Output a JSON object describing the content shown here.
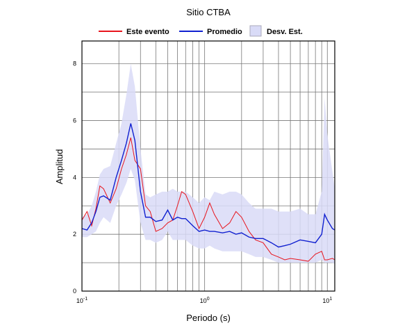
{
  "chart_data": {
    "type": "line",
    "title": "Sitio CTBA",
    "x_label": "Periodo (s)",
    "y_label": "Amplitud",
    "log_x": true,
    "grid": true,
    "xlim": [
      0.1,
      11.5
    ],
    "ylim": [
      0,
      8.8
    ],
    "xticks": [
      {
        "value": 0.1,
        "label": "10",
        "exponent": "-1"
      },
      {
        "value": 1,
        "label": "10",
        "exponent": "0"
      },
      {
        "value": 10,
        "label": "10",
        "exponent": "1"
      }
    ],
    "xminor": [
      0.2,
      0.3,
      0.4,
      0.5,
      0.6,
      0.7,
      0.8,
      0.9,
      2,
      3,
      4,
      5,
      6,
      7,
      8,
      9
    ],
    "yticks": [
      0,
      2,
      4,
      6,
      8
    ],
    "yminor": [
      1,
      3,
      5,
      7
    ],
    "x": [
      0.1,
      0.11,
      0.12,
      0.13,
      0.14,
      0.15,
      0.17,
      0.19,
      0.21,
      0.23,
      0.25,
      0.27,
      0.3,
      0.33,
      0.36,
      0.4,
      0.45,
      0.5,
      0.55,
      0.6,
      0.65,
      0.7,
      0.8,
      0.9,
      1.0,
      1.1,
      1.2,
      1.4,
      1.6,
      1.8,
      2.0,
      2.3,
      2.6,
      3,
      3.5,
      4,
      4.5,
      5,
      6,
      7,
      8,
      9,
      9.5,
      10,
      11,
      11.5
    ],
    "band": {
      "name": "Desv. Est.",
      "color": "#d9dbf7",
      "upper": [
        2.6,
        2.7,
        3.0,
        3.5,
        4.1,
        4.3,
        4.4,
        5.2,
        5.9,
        6.9,
        8.0,
        7.2,
        5.0,
        3.4,
        3.3,
        3.4,
        3.5,
        3.5,
        3.6,
        3.5,
        3.5,
        3.5,
        3.3,
        3.1,
        3.3,
        3.2,
        3.5,
        3.4,
        3.5,
        3.5,
        3.4,
        3.1,
        2.9,
        2.9,
        2.9,
        2.8,
        2.8,
        2.8,
        2.9,
        2.7,
        2.7,
        3.5,
        6.8,
        5.5,
        4.2,
        3.6
      ],
      "lower": [
        1.9,
        1.9,
        2.0,
        2.1,
        2.4,
        2.6,
        2.4,
        3.0,
        3.4,
        3.8,
        4.3,
        3.9,
        2.4,
        1.8,
        1.8,
        1.7,
        1.8,
        2.1,
        1.8,
        1.8,
        1.8,
        1.8,
        1.6,
        1.5,
        1.5,
        1.6,
        1.5,
        1.4,
        1.4,
        1.4,
        1.4,
        1.3,
        1.2,
        1.2,
        1.1,
        1.0,
        1.0,
        1.0,
        1.0,
        1.0,
        1.0,
        1.1,
        1.0,
        1.0,
        1.0,
        0.95
      ]
    },
    "series": [
      {
        "name": "Este evento",
        "color": "#e8141c",
        "values": [
          2.5,
          2.8,
          2.3,
          2.9,
          3.7,
          3.6,
          3.1,
          3.6,
          4.3,
          4.8,
          5.4,
          4.6,
          4.3,
          3.0,
          2.8,
          2.1,
          2.2,
          2.4,
          2.5,
          3.0,
          3.5,
          3.4,
          2.8,
          2.2,
          2.6,
          3.1,
          2.7,
          2.2,
          2.4,
          2.8,
          2.6,
          2.1,
          1.8,
          1.7,
          1.3,
          1.2,
          1.1,
          1.15,
          1.1,
          1.05,
          1.3,
          1.4,
          1.1,
          1.1,
          1.15,
          1.1
        ]
      },
      {
        "name": "Promedio",
        "color": "#1020d0",
        "values": [
          2.2,
          2.15,
          2.4,
          2.8,
          3.3,
          3.35,
          3.2,
          4.0,
          4.6,
          5.2,
          5.9,
          5.3,
          3.5,
          2.6,
          2.6,
          2.45,
          2.5,
          2.85,
          2.5,
          2.6,
          2.55,
          2.55,
          2.3,
          2.1,
          2.15,
          2.1,
          2.1,
          2.05,
          2.1,
          2.0,
          2.05,
          1.9,
          1.85,
          1.85,
          1.7,
          1.55,
          1.6,
          1.65,
          1.8,
          1.75,
          1.7,
          2.0,
          2.7,
          2.5,
          2.2,
          2.15
        ]
      }
    ]
  }
}
